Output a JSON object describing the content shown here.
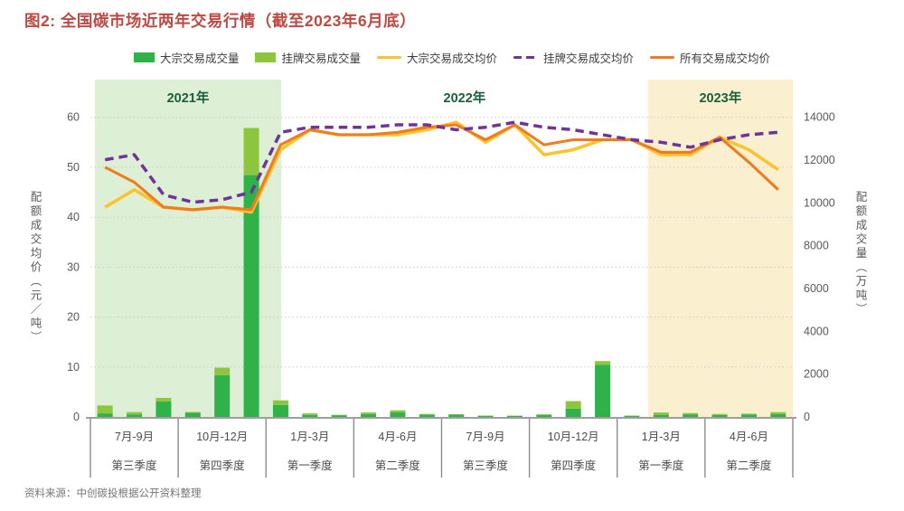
{
  "title": "图2: 全国碳市场近两年交易行情（截至2023年6月底）",
  "source": "资料来源：中创碳投根据公开资料整理",
  "colors": {
    "title_text": "#bc4a42",
    "bulk_volume_bar": "#2fb24a",
    "listed_volume_bar": "#8cc63f",
    "bulk_price_line": "#fdc32d",
    "listed_price_line": "#6f3399",
    "all_price_line": "#ef7c1e",
    "band_2021": "#ddefd5",
    "band_2023": "#faf0d0",
    "year_label_text": "#1b5e3b",
    "tick_text": "#595959",
    "grid_line": "#cbcbcb",
    "axis_line": "#9e9e9e"
  },
  "chart_data": {
    "type": "combo: stacked monthly bars (right axis) + 3 price lines (left axis), dual y-axis",
    "months_per_group": 3,
    "x_groups": [
      {
        "months": "7月-9月",
        "quarter": "第三季度",
        "year": "2021"
      },
      {
        "months": "10月-12月",
        "quarter": "第四季度",
        "year": "2021"
      },
      {
        "months": "1月-3月",
        "quarter": "第一季度",
        "year": "2022"
      },
      {
        "months": "4月-6月",
        "quarter": "第二季度",
        "year": "2022"
      },
      {
        "months": "7月-9月",
        "quarter": "第三季度",
        "year": "2022"
      },
      {
        "months": "10月-12月",
        "quarter": "第四季度",
        "year": "2022"
      },
      {
        "months": "1月-3月",
        "quarter": "第一季度",
        "year": "2023"
      },
      {
        "months": "4月-6月",
        "quarter": "第二季度",
        "year": "2023"
      }
    ],
    "year_bands": [
      {
        "label": "2021年",
        "color": "#ddefd5",
        "from_month": 0.15,
        "to_month": 6.52
      },
      {
        "label": "2022年",
        "color": null,
        "from_month": 6.52,
        "to_month": 19.05
      },
      {
        "label": "2023年",
        "color": "#faf0d0",
        "from_month": 19.05,
        "to_month": 24
      }
    ],
    "left_axis": {
      "title": "配额成交均价（元/吨）",
      "min": 0,
      "max": 60,
      "step": 10
    },
    "right_axis": {
      "title": "配额成交量（万吨）",
      "min": 0,
      "max": 14000,
      "step": 2000
    },
    "series": [
      {
        "name": "大宗交易成交量",
        "type": "bar",
        "stack": "volume",
        "axis": "right",
        "color": "#2fb24a",
        "values": [
          165,
          120,
          730,
          190,
          1950,
          11300,
          560,
          95,
          80,
          125,
          210,
          110,
          105,
          50,
          45,
          95,
          390,
          2440,
          50,
          100,
          120,
          90,
          115,
          140
        ]
      },
      {
        "name": "挂牌交易成交量",
        "type": "bar",
        "stack": "volume",
        "axis": "right",
        "color": "#8cc63f",
        "values": [
          370,
          105,
          160,
          40,
          350,
          2200,
          215,
          75,
          20,
          85,
          100,
          30,
          20,
          20,
          20,
          30,
          350,
          170,
          20,
          110,
          60,
          50,
          40,
          85
        ]
      },
      {
        "name": "大宗交易成交均价",
        "type": "line",
        "axis": "left",
        "color": "#fdc32d",
        "dashed": false,
        "values": [
          42,
          45.5,
          42,
          41.5,
          42,
          41,
          53.5,
          57.5,
          56.5,
          56.5,
          56.5,
          57.5,
          59,
          55,
          58.5,
          52.5,
          53.5,
          55.5,
          55.5,
          52.5,
          52.5,
          56,
          53.5,
          49.5
        ]
      },
      {
        "name": "挂牌交易成交均价",
        "type": "line",
        "axis": "left",
        "color": "#6f3399",
        "dashed": true,
        "values": [
          51.5,
          52.5,
          44.5,
          43,
          43.5,
          45,
          57,
          58,
          58,
          58,
          58.5,
          58.5,
          57.5,
          58,
          59,
          58,
          57.5,
          56.5,
          55.5,
          55,
          54,
          55.5,
          56.5,
          57
        ]
      },
      {
        "name": "所有交易成交均价",
        "type": "line",
        "axis": "left",
        "color": "#ef7c1e",
        "dashed": false,
        "values": [
          50,
          47,
          42,
          41.5,
          42,
          41.5,
          54.5,
          57.5,
          56.5,
          56.5,
          57,
          58,
          58.5,
          55.5,
          58.5,
          54.5,
          55.5,
          55.5,
          55.5,
          53,
          53,
          56,
          51,
          45.5
        ]
      }
    ]
  }
}
